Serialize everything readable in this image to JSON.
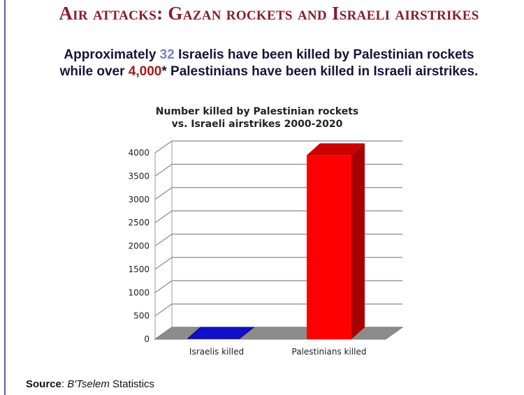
{
  "headline": "Air attacks: Gazan rockets and Israeli airstrikes",
  "lead": {
    "p1": "Approximately ",
    "n1": "32",
    "p2": " Israelis have been killed by Palestinian rockets",
    "p3": "while over ",
    "n2": "4,000",
    "p4": "* Palestinians have been killed in Israeli airstrikes."
  },
  "source": {
    "label": "Source",
    "sep": ": ",
    "name": "B'Tselem",
    "rest": " Statistics"
  },
  "colors": {
    "headline": "#8b1a2b",
    "lead_text": "#14143c",
    "israeli_number": "#7b7fd0",
    "palestinian_number": "#a61a1a",
    "israeli_bar": "#1010c8",
    "palestinian_bar": "#ff0000"
  },
  "chart_data": {
    "type": "bar",
    "title_line1": "Number killed by Palestinian rockets",
    "title_line2": "vs. Israeli airstrikes 2000-2020",
    "categories": [
      "Israelis killed",
      "Palestinians killed"
    ],
    "values": [
      32,
      3950
    ],
    "ylim": [
      0,
      4000
    ],
    "yticks": [
      0,
      500,
      1000,
      1500,
      2000,
      2500,
      3000,
      3500,
      4000
    ],
    "xlabel": "",
    "ylabel": "",
    "grid": true,
    "style": "3d"
  }
}
